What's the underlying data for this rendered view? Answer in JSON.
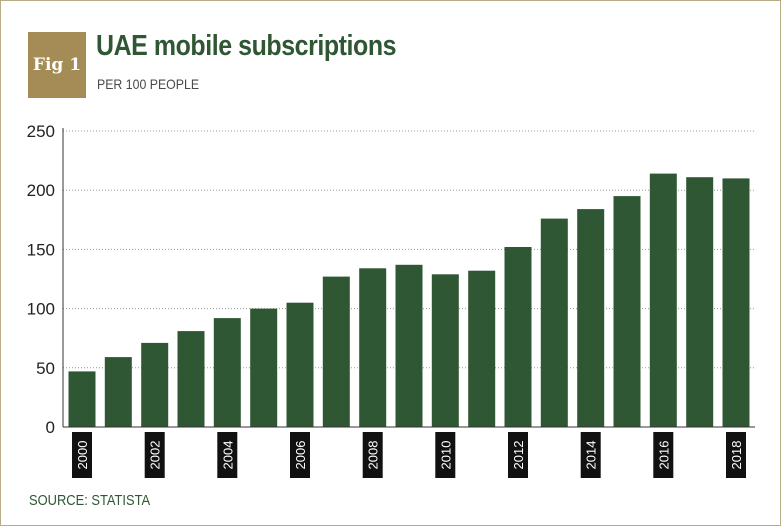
{
  "header": {
    "badge": "Fig 1",
    "title": "UAE mobile subscriptions",
    "subtitle": "PER 100 PEOPLE"
  },
  "footer": {
    "source": "SOURCE: STATISTA"
  },
  "colors": {
    "bar": "#2f5733",
    "badge": "#a58c57",
    "grid": "#9a9a9a",
    "tick_box": "#111111"
  },
  "chart_data": {
    "type": "bar",
    "title": "UAE mobile subscriptions",
    "subtitle": "PER 100 PEOPLE",
    "categories": [
      "2000",
      "2001",
      "2002",
      "2003",
      "2004",
      "2005",
      "2006",
      "2007",
      "2008",
      "2009",
      "2010",
      "2011",
      "2012",
      "2013",
      "2014",
      "2015",
      "2016",
      "2017",
      "2018"
    ],
    "x_tick_labels": [
      "2000",
      "",
      "2002",
      "",
      "2004",
      "",
      "2006",
      "",
      "2008",
      "",
      "2010",
      "",
      "2012",
      "",
      "2014",
      "",
      "2016",
      "",
      "2018"
    ],
    "values": [
      47,
      59,
      71,
      81,
      92,
      100,
      105,
      127,
      134,
      137,
      129,
      132,
      152,
      176,
      184,
      195,
      214,
      211,
      210
    ],
    "ylim": [
      0,
      250
    ],
    "yticks": [
      0,
      50,
      100,
      150,
      200,
      250
    ],
    "grid": "horizontal dotted",
    "xlabel": "",
    "ylabel": ""
  }
}
